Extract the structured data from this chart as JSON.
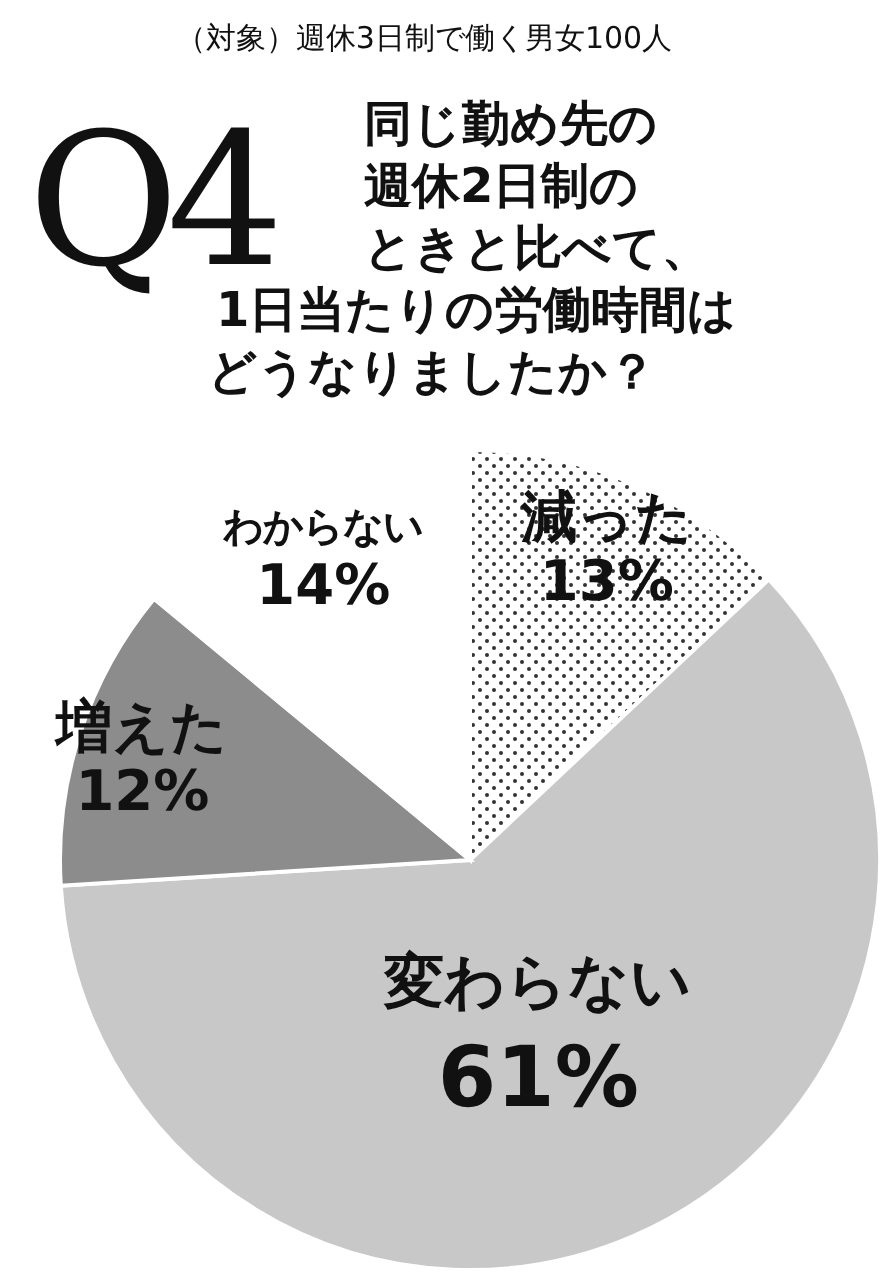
{
  "chart_data": {
    "type": "pie",
    "title": "Q4",
    "subtitle": "同じ勤め先の週休2日制のときと比べて、1日当たりの労働時間はどうなりましたか？",
    "annotations": [
      "（対象）週休3日制で働く男女100人"
    ],
    "categories": [
      "減った",
      "変わらない",
      "増えた",
      "わからない"
    ],
    "values": [
      13,
      61,
      12,
      14
    ],
    "colors": [
      "#ffffff",
      "#c8c8c8",
      "#8c8c8c",
      "#ffffff"
    ],
    "value_labels": [
      "13%",
      "61%",
      "12%",
      "14%"
    ]
  }
}
